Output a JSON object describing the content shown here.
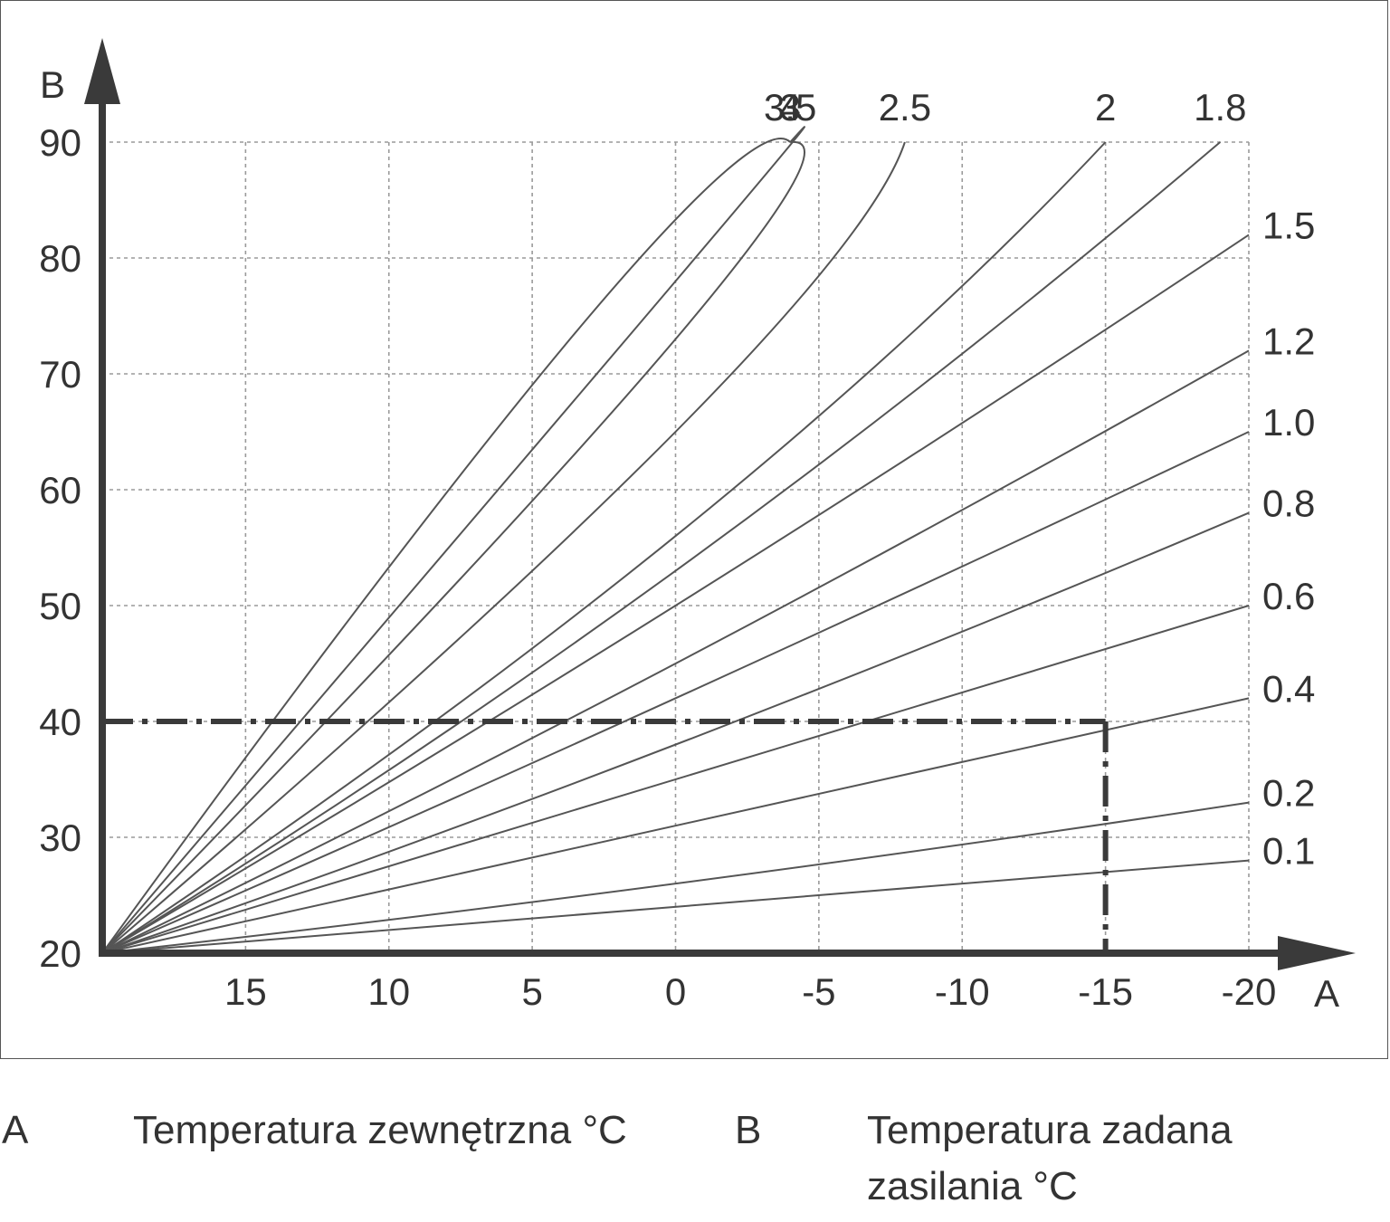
{
  "chart_data": {
    "type": "line",
    "title": "",
    "x_axis": {
      "letter": "A",
      "range": [
        20,
        -20
      ],
      "reversed": true,
      "ticks": [
        15,
        10,
        5,
        0,
        -5,
        -10,
        -15,
        -20
      ],
      "tick_labels": [
        "15",
        "10",
        "5",
        "0",
        "-5",
        "-10",
        "-15",
        "-20"
      ]
    },
    "y_axis": {
      "letter": "B",
      "range": [
        20,
        90
      ],
      "ticks": [
        20,
        30,
        40,
        50,
        60,
        70,
        80,
        90
      ],
      "tick_labels": [
        "20",
        "30",
        "40",
        "50",
        "60",
        "70",
        "80",
        "90"
      ]
    },
    "grid": true,
    "curve_origin": {
      "x": 20,
      "y": 20
    },
    "series": [
      {
        "name": "4",
        "points": [
          [
            20,
            20
          ],
          [
            3,
            75
          ],
          [
            -4,
            90
          ]
        ]
      },
      {
        "name": "3.5",
        "points": [
          [
            20,
            20
          ],
          [
            0,
            78
          ],
          [
            -4,
            90
          ]
        ]
      },
      {
        "name": "3",
        "points": [
          [
            20,
            20
          ],
          [
            0,
            73
          ],
          [
            -4,
            90
          ]
        ]
      },
      {
        "name": "2.5",
        "points": [
          [
            20,
            20
          ],
          [
            0,
            65
          ],
          [
            -8,
            90
          ]
        ]
      },
      {
        "name": "2",
        "points": [
          [
            20,
            20
          ],
          [
            0,
            56
          ],
          [
            -15,
            90
          ]
        ]
      },
      {
        "name": "1.8",
        "points": [
          [
            20,
            20
          ],
          [
            0,
            53
          ],
          [
            -19,
            90
          ]
        ]
      },
      {
        "name": "1.5",
        "points": [
          [
            20,
            20
          ],
          [
            0,
            50
          ],
          [
            -20,
            82
          ]
        ]
      },
      {
        "name": "1.2",
        "points": [
          [
            20,
            20
          ],
          [
            0,
            45
          ],
          [
            -20,
            72
          ]
        ]
      },
      {
        "name": "1.0",
        "points": [
          [
            20,
            20
          ],
          [
            0,
            42
          ],
          [
            -20,
            65
          ]
        ]
      },
      {
        "name": "0.8",
        "points": [
          [
            20,
            20
          ],
          [
            0,
            38
          ],
          [
            -20,
            58
          ]
        ]
      },
      {
        "name": "0.6",
        "points": [
          [
            20,
            20
          ],
          [
            0,
            35
          ],
          [
            -20,
            50
          ]
        ]
      },
      {
        "name": "0.4",
        "points": [
          [
            20,
            20
          ],
          [
            0,
            31
          ],
          [
            -20,
            42
          ]
        ]
      },
      {
        "name": "0.2",
        "points": [
          [
            20,
            20
          ],
          [
            0,
            26
          ],
          [
            -20,
            33
          ]
        ]
      },
      {
        "name": "0.1",
        "points": [
          [
            20,
            20
          ],
          [
            0,
            24
          ],
          [
            -20,
            28
          ]
        ]
      }
    ],
    "example_reading": {
      "x": -15,
      "y": 40
    }
  },
  "legend": {
    "a_key": "A",
    "a_text": "Temperatura zewnętrzna °C",
    "b_key": "B",
    "b_text": "Temperatura zadana zasilania °C"
  },
  "colors": {
    "curve": "#555555",
    "axis": "#3a3a3a",
    "grid": "#9a9a9a",
    "text": "#333333"
  }
}
